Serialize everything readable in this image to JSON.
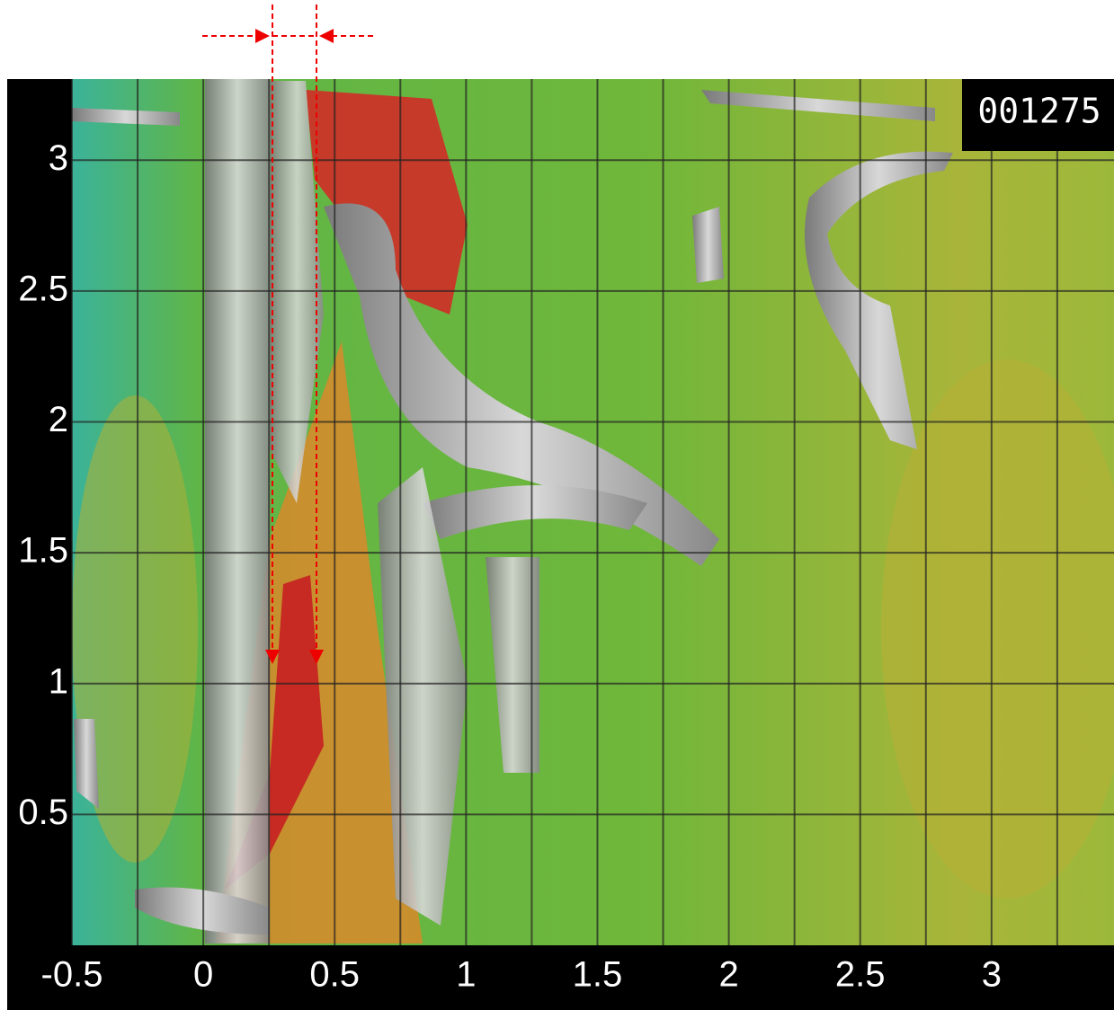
{
  "chart_data": {
    "type": "field",
    "frame_label": "001275",
    "xlim": [
      -0.5,
      3.466
    ],
    "ylim": [
      0,
      3.31
    ],
    "xticks": [
      -0.5,
      0,
      0.5,
      1,
      1.5,
      2,
      2.5,
      3
    ],
    "yticks": [
      0.5,
      1,
      1.5,
      2,
      2.5,
      3
    ],
    "x_minor_grid": [
      -0.25,
      0.25,
      0.75,
      1.25,
      1.75,
      2.25,
      2.75,
      3.25
    ],
    "grid": true
  }
}
